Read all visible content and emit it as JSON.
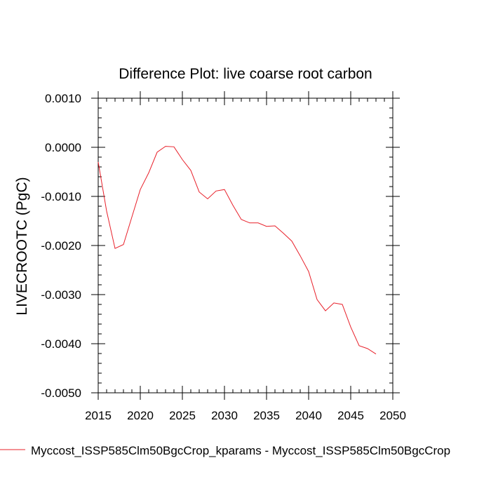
{
  "chart_data": {
    "type": "line",
    "title": "Difference Plot: live coarse root carbon",
    "ylabel": "LIVECROOTC  (PgC)",
    "xlabel": "",
    "xlim": [
      2015,
      2050
    ],
    "ylim": [
      -0.005,
      0.001
    ],
    "x_ticks": [
      2015,
      2020,
      2025,
      2030,
      2035,
      2040,
      2045,
      2050
    ],
    "x_tick_labels": [
      "2015",
      "2020",
      "2025",
      "2030",
      "2035",
      "2040",
      "2045",
      "2050"
    ],
    "y_ticks": [
      0.001,
      0,
      -0.001,
      -0.002,
      -0.003,
      -0.004,
      -0.005
    ],
    "y_tick_labels": [
      "0.0010",
      "0.0000",
      "-0.0010",
      "-0.0020",
      "-0.0030",
      "-0.0040",
      "-0.0050"
    ],
    "grid": false,
    "legend_position": "bottom-left",
    "series": [
      {
        "name": "Myccost_ISSP585Clm50BgcCrop_kparams - Myccost_ISSP585Clm50BgcCrop",
        "color": "#e8202a",
        "x": [
          2015,
          2016,
          2017,
          2018,
          2019,
          2020,
          2021,
          2022,
          2023,
          2024,
          2025,
          2026,
          2027,
          2028,
          2029,
          2030,
          2031,
          2032,
          2033,
          2034,
          2035,
          2036,
          2037,
          2038,
          2039,
          2040,
          2041,
          2042,
          2043,
          2044,
          2045,
          2046,
          2047,
          2048
        ],
        "y": [
          -0.0003,
          -0.0013,
          -0.00206,
          -0.00198,
          -0.00142,
          -0.00086,
          -0.00052,
          -0.0001,
          2e-05,
          1e-05,
          -0.00025,
          -0.00047,
          -0.00091,
          -0.00105,
          -0.00089,
          -0.00086,
          -0.00118,
          -0.00147,
          -0.00154,
          -0.00154,
          -0.00161,
          -0.0016,
          -0.00175,
          -0.00191,
          -0.00221,
          -0.00253,
          -0.0031,
          -0.00333,
          -0.00317,
          -0.0032,
          -0.00366,
          -0.00404,
          -0.0041,
          -0.00421
        ]
      }
    ]
  }
}
